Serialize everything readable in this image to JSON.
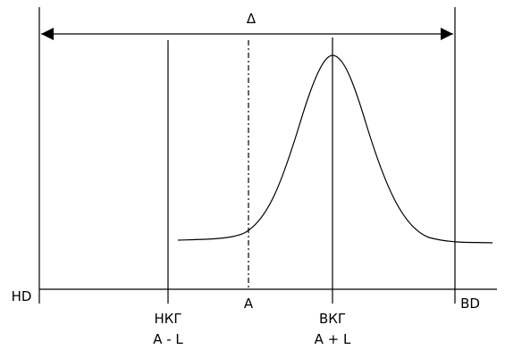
{
  "delta": "Δ",
  "left_label": "HD",
  "right_label": "BD",
  "markers": [
    {
      "label": "НКГ",
      "sublabel": "A - L"
    },
    {
      "label": "A"
    },
    {
      "label": "ВКГ",
      "sublabel": "A + L"
    }
  ]
}
